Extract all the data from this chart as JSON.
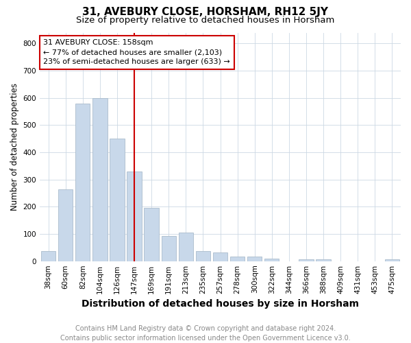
{
  "title": "31, AVEBURY CLOSE, HORSHAM, RH12 5JY",
  "subtitle": "Size of property relative to detached houses in Horsham",
  "xlabel": "Distribution of detached houses by size in Horsham",
  "ylabel": "Number of detached properties",
  "categories": [
    "38sqm",
    "60sqm",
    "82sqm",
    "104sqm",
    "126sqm",
    "147sqm",
    "169sqm",
    "191sqm",
    "213sqm",
    "235sqm",
    "257sqm",
    "278sqm",
    "300sqm",
    "322sqm",
    "344sqm",
    "366sqm",
    "388sqm",
    "409sqm",
    "431sqm",
    "453sqm",
    "475sqm"
  ],
  "values": [
    37,
    265,
    580,
    600,
    450,
    330,
    195,
    92,
    104,
    38,
    33,
    17,
    17,
    10,
    0,
    7,
    7,
    0,
    0,
    0,
    7
  ],
  "bar_color": "#c8d8ea",
  "bar_edgecolor": "#aabccc",
  "red_line_bin_index": 5,
  "red_line_color": "#cc0000",
  "annotation_line1": "31 AVEBURY CLOSE: 158sqm",
  "annotation_line2": "← 77% of detached houses are smaller (2,103)",
  "annotation_line3": "23% of semi-detached houses are larger (633) →",
  "annotation_box_edgecolor": "#cc0000",
  "ylim": [
    0,
    840
  ],
  "yticks": [
    0,
    100,
    200,
    300,
    400,
    500,
    600,
    700,
    800
  ],
  "footer_text": "Contains HM Land Registry data © Crown copyright and database right 2024.\nContains public sector information licensed under the Open Government Licence v3.0.",
  "background_color": "#ffffff",
  "grid_color": "#ccd8e4",
  "title_fontsize": 11,
  "subtitle_fontsize": 9.5,
  "xlabel_fontsize": 10,
  "ylabel_fontsize": 8.5,
  "tick_fontsize": 7.5,
  "annotation_fontsize": 8,
  "footer_fontsize": 7
}
